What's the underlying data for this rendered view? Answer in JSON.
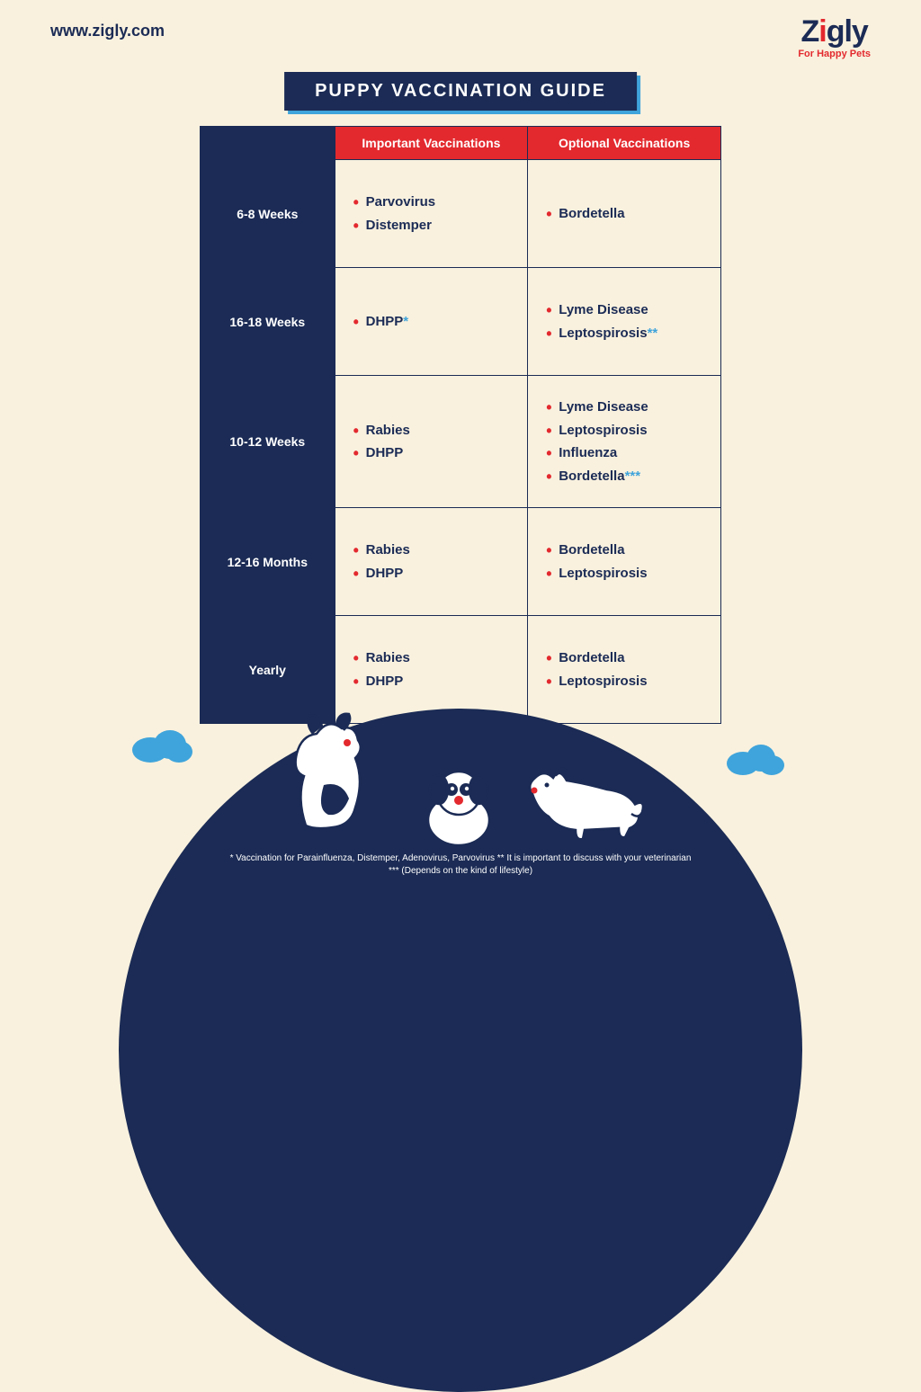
{
  "url": "www.zigly.com",
  "logo": {
    "text": "Zigly",
    "tagline": "For Happy Pets"
  },
  "title": "PUPPY VACCINATION GUIDE",
  "columns": [
    "Important Vaccinations",
    "Optional Vaccinations"
  ],
  "rows": [
    {
      "age": "6-8 Weeks",
      "important": [
        {
          "t": "Parvovirus"
        },
        {
          "t": "Distemper"
        }
      ],
      "optional": [
        {
          "t": "Bordetella"
        }
      ]
    },
    {
      "age": "16-18 Weeks",
      "important": [
        {
          "t": "DHPP",
          "a": "*"
        }
      ],
      "optional": [
        {
          "t": "Lyme Disease"
        },
        {
          "t": "Leptospirosis",
          "a": "**"
        }
      ]
    },
    {
      "age": "10-12 Weeks",
      "important": [
        {
          "t": "Rabies"
        },
        {
          "t": "DHPP"
        }
      ],
      "optional": [
        {
          "t": "Lyme Disease"
        },
        {
          "t": "Leptospirosis"
        },
        {
          "t": "Influenza"
        },
        {
          "t": "Bordetella",
          "a": "***"
        }
      ]
    },
    {
      "age": "12-16 Months",
      "important": [
        {
          "t": "Rabies"
        },
        {
          "t": "DHPP"
        }
      ],
      "optional": [
        {
          "t": "Bordetella"
        },
        {
          "t": "Leptospirosis"
        }
      ]
    },
    {
      "age": "Yearly",
      "important": [
        {
          "t": "Rabies"
        },
        {
          "t": "DHPP"
        }
      ],
      "optional": [
        {
          "t": "Bordetella"
        },
        {
          "t": "Leptospirosis"
        }
      ]
    }
  ],
  "footnotes": [
    "* Vaccination for Parainfluenza, Distemper, Adenovirus, Parvovirus   ** It is important to discuss with your veterinarian",
    "*** (Depends on the kind of lifestyle)"
  ],
  "colors": {
    "bg": "#f9f1de",
    "navy": "#1b2b55",
    "red": "#e3292e",
    "blue": "#3fa4db"
  }
}
